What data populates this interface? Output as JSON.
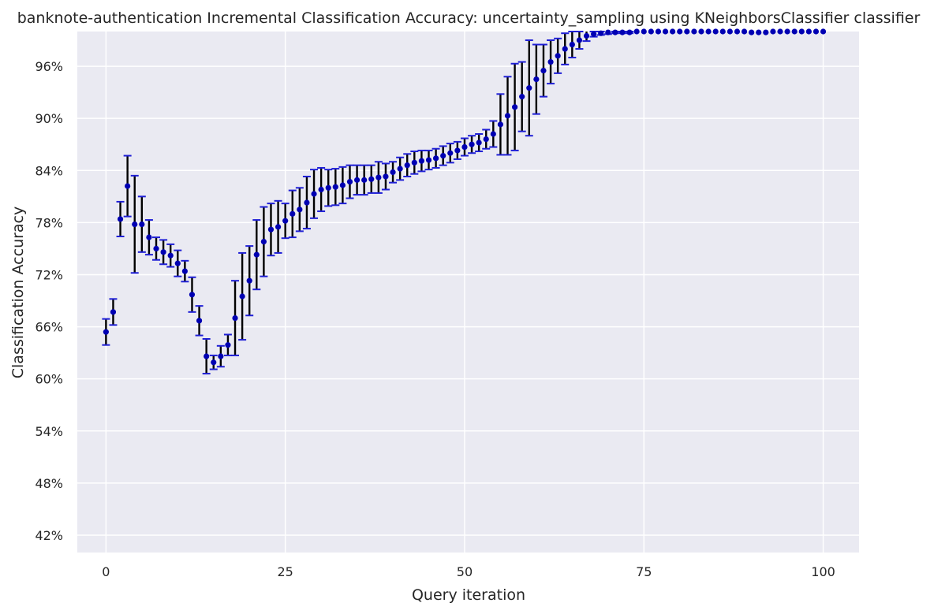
{
  "chart_data": {
    "type": "scatter",
    "title": "banknote-authentication Incremental Classification Accuracy: uncertainty_sampling using KNeighborsClassifier classifier",
    "xlabel": "Query iteration",
    "ylabel": "Classification Accuracy",
    "xlim": [
      -4,
      105
    ],
    "ylim": [
      0.4,
      1.0
    ],
    "xticks": [
      0,
      25,
      50,
      75,
      100
    ],
    "xtick_labels": [
      "0",
      "25",
      "50",
      "75",
      "100"
    ],
    "yticks": [
      0.42,
      0.48,
      0.54,
      0.6,
      0.66,
      0.72,
      0.78,
      0.84,
      0.9,
      0.96
    ],
    "ytick_labels": [
      "42%",
      "48%",
      "54%",
      "60%",
      "66%",
      "72%",
      "78%",
      "84%",
      "90%",
      "96%"
    ],
    "grid": true,
    "legend": "none",
    "colors": {
      "background": "#eaeaf2",
      "point": "#0000b3",
      "errorbar": "#000000",
      "errorcap": "#1f1fd6",
      "grid": "#ffffff"
    },
    "series": [
      {
        "x": [
          0,
          1,
          2,
          3,
          4,
          5,
          6,
          7,
          8,
          9,
          10,
          11,
          12,
          13,
          14,
          15,
          16,
          17,
          18,
          19,
          20,
          21,
          22,
          23,
          24,
          25,
          26,
          27,
          28,
          29,
          30,
          31,
          32,
          33,
          34,
          35,
          36,
          37,
          38,
          39,
          40,
          41,
          42,
          43,
          44,
          45,
          46,
          47,
          48,
          49,
          50,
          51,
          52,
          53,
          54,
          55,
          56,
          57,
          58,
          59,
          60,
          61,
          62,
          63,
          64,
          65,
          66,
          67,
          68,
          69,
          70,
          71,
          72,
          73,
          74,
          75,
          76,
          77,
          78,
          79,
          80,
          81,
          82,
          83,
          84,
          85,
          86,
          87,
          88,
          89,
          90,
          91,
          92,
          93,
          94,
          95,
          96,
          97,
          98,
          99,
          100
        ],
        "y": [
          0.654,
          0.677,
          0.784,
          0.822,
          0.778,
          0.778,
          0.763,
          0.75,
          0.746,
          0.742,
          0.733,
          0.724,
          0.697,
          0.667,
          0.626,
          0.619,
          0.626,
          0.639,
          0.67,
          0.695,
          0.713,
          0.743,
          0.758,
          0.772,
          0.775,
          0.782,
          0.79,
          0.795,
          0.803,
          0.813,
          0.818,
          0.82,
          0.821,
          0.823,
          0.827,
          0.829,
          0.829,
          0.83,
          0.832,
          0.833,
          0.838,
          0.842,
          0.846,
          0.849,
          0.851,
          0.852,
          0.854,
          0.857,
          0.86,
          0.863,
          0.867,
          0.87,
          0.872,
          0.876,
          0.882,
          0.893,
          0.903,
          0.913,
          0.925,
          0.935,
          0.945,
          0.955,
          0.965,
          0.972,
          0.98,
          0.985,
          0.99,
          0.995,
          0.997,
          0.998,
          0.999,
          0.999,
          0.999,
          0.999,
          1.0,
          1.0,
          1.0,
          1.0,
          1.0,
          1.0,
          1.0,
          1.0,
          1.0,
          1.0,
          1.0,
          1.0,
          1.0,
          1.0,
          1.0,
          1.0,
          0.999,
          0.999,
          0.999,
          1.0,
          1.0,
          1.0,
          1.0,
          1.0,
          1.0,
          1.0,
          1.0
        ],
        "err": [
          0.015,
          0.015,
          0.02,
          0.035,
          0.056,
          0.032,
          0.02,
          0.013,
          0.014,
          0.013,
          0.015,
          0.012,
          0.02,
          0.017,
          0.02,
          0.008,
          0.012,
          0.012,
          0.043,
          0.05,
          0.04,
          0.04,
          0.04,
          0.03,
          0.03,
          0.02,
          0.027,
          0.025,
          0.03,
          0.028,
          0.025,
          0.021,
          0.021,
          0.021,
          0.019,
          0.017,
          0.017,
          0.016,
          0.018,
          0.015,
          0.012,
          0.013,
          0.013,
          0.013,
          0.012,
          0.011,
          0.011,
          0.011,
          0.011,
          0.01,
          0.01,
          0.01,
          0.01,
          0.011,
          0.015,
          0.035,
          0.045,
          0.05,
          0.04,
          0.055,
          0.04,
          0.03,
          0.025,
          0.02,
          0.018,
          0.015,
          0.01,
          0.006,
          0.003,
          0.002,
          0.002,
          0.001,
          0.001,
          0.001,
          0.0,
          0.0,
          0.0,
          0.0,
          0.0,
          0.0,
          0.0,
          0.0,
          0.0,
          0.0,
          0.0,
          0.0,
          0.0,
          0.0,
          0.0,
          0.0,
          0.0,
          0.0,
          0.0,
          0.0,
          0.0,
          0.0,
          0.0,
          0.0,
          0.0,
          0.0,
          0.0
        ]
      }
    ]
  }
}
